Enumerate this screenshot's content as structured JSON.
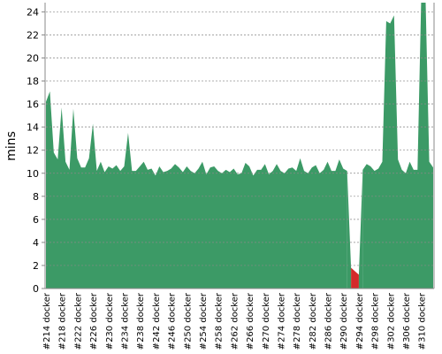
{
  "chart_data": {
    "type": "area",
    "y_label": "mins",
    "categories": [
      "#214 docker",
      null,
      null,
      null,
      "#218 docker",
      null,
      null,
      null,
      "#222 docker",
      null,
      null,
      null,
      "#226 docker",
      null,
      null,
      null,
      "#230 docker",
      null,
      null,
      null,
      "#234 docker",
      null,
      null,
      null,
      "#238 docker",
      null,
      null,
      null,
      "#242 docker",
      null,
      null,
      null,
      "#246 docker",
      null,
      null,
      null,
      "#250 docker",
      null,
      null,
      null,
      "#254 docker",
      null,
      null,
      null,
      "#258 docker",
      null,
      null,
      null,
      "#262 docker",
      null,
      null,
      null,
      "#266 docker",
      null,
      null,
      null,
      "#270 docker",
      null,
      null,
      null,
      "#274 docker",
      null,
      null,
      null,
      "#278 docker",
      null,
      null,
      null,
      "#282 docker",
      null,
      null,
      null,
      "#286 docker",
      null,
      null,
      null,
      "#290 docker",
      null,
      null,
      null,
      "#294 docker",
      null,
      null,
      null,
      "#298 docker",
      null,
      null,
      null,
      "#302 docker",
      null,
      null,
      null,
      "#306 docker",
      null,
      null,
      null,
      "#310 docker",
      null,
      null,
      null
    ],
    "series": [
      {
        "color": "#3c9a66",
        "values": [
          16.2,
          17.1,
          11.8,
          11.2,
          15.7,
          11.0,
          10.3,
          15.6,
          11.3,
          10.5,
          10.5,
          11.3,
          14.3,
          10.2,
          11.0,
          10.1,
          10.6,
          10.4,
          10.7,
          10.2,
          10.6,
          13.5,
          10.2,
          10.2,
          10.6,
          11.0,
          10.3,
          10.4,
          9.8,
          10.6,
          10.1,
          10.2,
          10.4,
          10.8,
          10.5,
          10.1,
          10.6,
          10.2,
          10.0,
          10.4,
          11.0,
          9.9,
          10.5,
          10.6,
          10.2,
          10.0,
          10.3,
          10.1,
          10.4,
          9.9,
          10.0,
          10.9,
          10.6,
          9.8,
          10.3,
          10.3,
          10.8,
          9.9,
          10.2,
          10.8,
          10.2,
          10.0,
          10.4,
          10.5,
          10.2,
          11.3,
          10.2,
          10.0,
          10.5,
          10.7,
          10.0,
          10.3,
          11.0,
          10.2,
          10.2,
          11.2,
          10.4,
          10.2,
          null,
          null,
          null,
          10.3,
          10.8,
          10.6,
          10.2,
          10.4,
          11.0,
          23.2,
          23.0,
          23.7,
          11.2,
          10.3,
          10.0,
          11.0,
          10.3,
          10.3,
          26,
          26,
          11.0,
          10.5
        ]
      },
      {
        "color": "#d42a2a",
        "values": [
          null,
          null,
          null,
          null,
          null,
          null,
          null,
          null,
          null,
          null,
          null,
          null,
          null,
          null,
          null,
          null,
          null,
          null,
          null,
          null,
          null,
          null,
          null,
          null,
          null,
          null,
          null,
          null,
          null,
          null,
          null,
          null,
          null,
          null,
          null,
          null,
          null,
          null,
          null,
          null,
          null,
          null,
          null,
          null,
          null,
          null,
          null,
          null,
          null,
          null,
          null,
          null,
          null,
          null,
          null,
          null,
          null,
          null,
          null,
          null,
          null,
          null,
          null,
          null,
          null,
          null,
          null,
          null,
          null,
          null,
          null,
          null,
          null,
          null,
          null,
          null,
          null,
          null,
          1.8,
          1.5,
          1.2,
          null,
          null,
          null,
          null,
          null,
          null,
          null,
          null,
          null,
          null,
          null,
          null,
          null,
          null,
          null,
          null,
          null,
          null,
          null
        ]
      }
    ],
    "ylim": [
      0,
      24.8
    ],
    "yticks": [
      0,
      2,
      4,
      6,
      8,
      10,
      12,
      14,
      16,
      18,
      20,
      22,
      24
    ],
    "grid": true
  }
}
